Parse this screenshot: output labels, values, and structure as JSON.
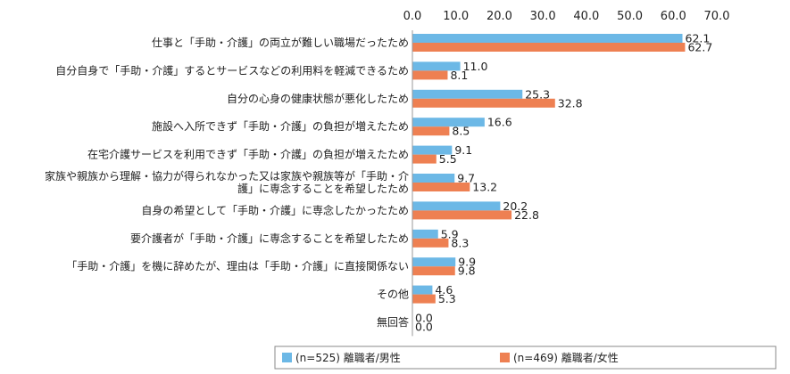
{
  "chart_data": {
    "type": "bar",
    "orientation": "horizontal",
    "categories": [
      "仕事と「手助・介護」の両立が難しい職場だったため",
      "自分自身で「手助・介護」するとサービスなどの利用料を軽減できるため",
      "自分の心身の健康状態が悪化したため",
      "施設へ入所できず「手助・介護」の負担が増えたため",
      "在宅介護サービスを利用できず「手助・介護」の負担が増えたため",
      "家族や親族から理解・協力が得られなかった又は家族や親族等が「手助・介護」に専念することを希望したため",
      "自身の希望として「手助・介護」に専念したかったため",
      "要介護者が「手助・介護」に専念することを希望したため",
      "「手助・介護」を機に辞めたが、理由は「手助・介護」に直接関係ない",
      "その他",
      "無回答"
    ],
    "category_lines": [
      [
        "仕事と「手助・介護」の両立が難しい職場だったため"
      ],
      [
        "自分自身で「手助・介護」するとサービスなどの利用料を軽減できるため"
      ],
      [
        "自分の心身の健康状態が悪化したため"
      ],
      [
        "施設へ入所できず「手助・介護」の負担が増えたため"
      ],
      [
        "在宅介護サービスを利用できず「手助・介護」の負担が増えたため"
      ],
      [
        "家族や親族から理解・協力が得られなかった又は家族や親族等が「手助・介",
        "護」に専念することを希望したため"
      ],
      [
        "自身の希望として「手助・介護」に専念したかったため"
      ],
      [
        "要介護者が「手助・介護」に専念することを希望したため"
      ],
      [
        "「手助・介護」を機に辞めたが、理由は「手助・介護」に直接関係ない"
      ],
      [
        "その他"
      ],
      [
        "無回答"
      ]
    ],
    "series": [
      {
        "name": "(n=525) 離職者/男性",
        "color": "#6cb8e6",
        "values": [
          62.1,
          11.0,
          25.3,
          16.6,
          9.1,
          9.7,
          20.2,
          5.9,
          9.9,
          4.6,
          0.0
        ]
      },
      {
        "name": "(n=469) 離職者/女性",
        "color": "#ee8052",
        "values": [
          62.7,
          8.1,
          32.8,
          8.5,
          5.5,
          13.2,
          22.8,
          8.3,
          9.8,
          5.3,
          0.0
        ]
      }
    ],
    "xlim": [
      0,
      70
    ],
    "xticks": [
      "0.0",
      "10.0",
      "20.0",
      "30.0",
      "40.0",
      "50.0",
      "60.0",
      "70.0"
    ],
    "legend_position": "bottom",
    "grid": false
  }
}
